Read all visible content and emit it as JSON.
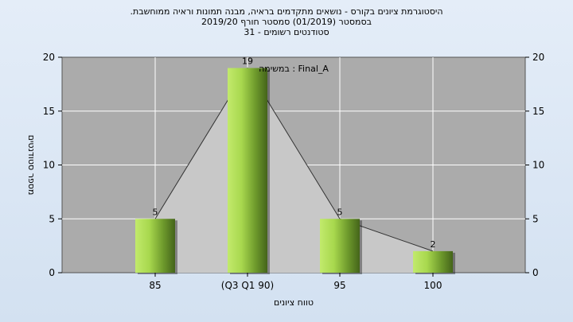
{
  "chart_data": {
    "type": "bar",
    "title_lines": [
      ".היסטוגרמת ציונים בקורס - נושאים מתקדמים בראיה, מבנה תמונות וראיה ממוחשבת",
      "בסמסטר  (01/2019)  סמסטר חורף 2019/20",
      "סטודנטים רשומים - 31"
    ],
    "categories": [
      "85",
      "(Q3 Q1 90)",
      "95",
      "100"
    ],
    "values": [
      5,
      19,
      5,
      2
    ],
    "data_labels": [
      "5",
      "19",
      "5",
      "2"
    ],
    "xlabel": "טווח ציונים",
    "ylabel": "מספר סטודנטים",
    "ylim": [
      0,
      20
    ],
    "yticks": [
      0,
      5,
      10,
      15,
      20
    ],
    "legend_text": "במשימה : Final_A",
    "grid": true,
    "colors": {
      "plot_bg": "#ababab",
      "area_fill": "#c8c8c8",
      "bar_light": "#c2ea6c",
      "bar_mid": "#8cc43a",
      "bar_dark": "#44641a",
      "grid": "#ffffff",
      "line": "#333333"
    }
  }
}
